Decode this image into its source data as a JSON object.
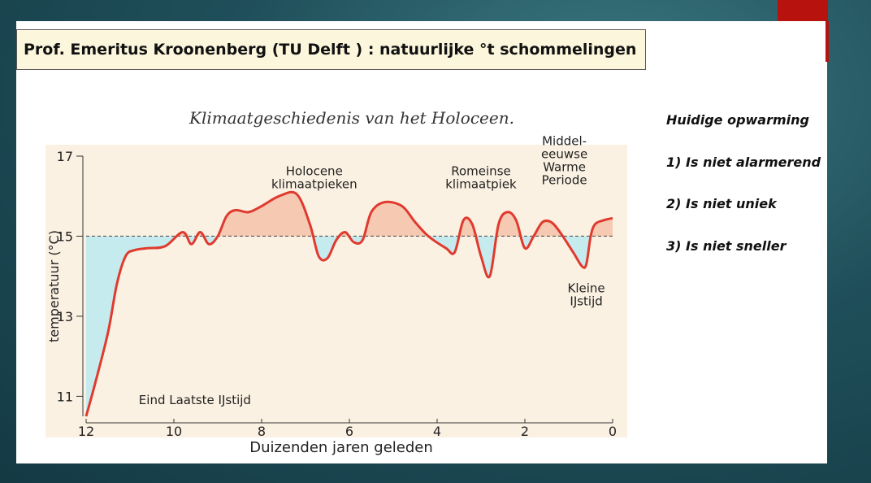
{
  "slide": {
    "title": "Prof. Emeritus Kroonenberg (TU Delft ) : natuurlijke °t schommelingen",
    "notes": [
      "Huidige opwarming",
      "1) Is niet alarmerend",
      "2) Is niet uniek",
      "3) Is niet sneller"
    ]
  },
  "chart_data": {
    "type": "area",
    "title": "Klimaatgeschiedenis van het Holoceen.",
    "xlabel": "Duizenden jaren geleden",
    "ylabel": "temperatuur (°C)",
    "xlim": [
      12,
      0
    ],
    "ylim": [
      10.5,
      17
    ],
    "x_ticks": [
      "12",
      "10",
      "8",
      "6",
      "4",
      "2",
      "0"
    ],
    "y_ticks": [
      "17",
      "15",
      "13",
      "11"
    ],
    "reference_line": 15,
    "colors": {
      "line": "#e03a2f",
      "above": "#f6c9b2",
      "below": "#c6ebef",
      "background": "#fbf1e2"
    },
    "series": [
      {
        "x": [
          12,
          11.8,
          11.5,
          11.3,
          11.1,
          10.9,
          10.6,
          10.2,
          9.8,
          9.6,
          9.4,
          9.2,
          9.0,
          8.8,
          8.6,
          8.3,
          8.0,
          7.6,
          7.2,
          6.9,
          6.7,
          6.5,
          6.3,
          6.1,
          5.9,
          5.7,
          5.5,
          5.2,
          4.8,
          4.5,
          4.2,
          3.8,
          3.6,
          3.4,
          3.2,
          3.0,
          2.8,
          2.6,
          2.4,
          2.2,
          2.0,
          1.8,
          1.6,
          1.4,
          1.2,
          0.9,
          0.7,
          0.6,
          0.5,
          0.4,
          0.2,
          0.0
        ],
        "y": [
          10.5,
          11.3,
          12.6,
          13.8,
          14.5,
          14.65,
          14.7,
          14.75,
          15.1,
          14.8,
          15.1,
          14.8,
          15.0,
          15.5,
          15.65,
          15.6,
          15.75,
          16.0,
          16.05,
          15.3,
          14.5,
          14.45,
          14.9,
          15.1,
          14.85,
          14.9,
          15.6,
          15.85,
          15.75,
          15.35,
          15.0,
          14.7,
          14.6,
          15.4,
          15.3,
          14.5,
          14.0,
          15.3,
          15.6,
          15.4,
          14.7,
          15.0,
          15.35,
          15.35,
          15.1,
          14.6,
          14.25,
          14.3,
          15.0,
          15.3,
          15.4,
          15.45
        ]
      }
    ],
    "annotations": [
      {
        "text": "Holocene klimaatpieken",
        "x": 6.8,
        "y": 16.2
      },
      {
        "text": "Romeinse klimaatpiek",
        "x": 3.0,
        "y": 16.2
      },
      {
        "text": "Middel-eeuwse Warme Periode",
        "x": 1.1,
        "y": 16.3
      },
      {
        "text": "Kleine IJstijd",
        "x": 0.6,
        "y": 13.6
      },
      {
        "text": "Eind Laatste IJstijd",
        "x": 10.8,
        "y": 10.8
      }
    ]
  }
}
